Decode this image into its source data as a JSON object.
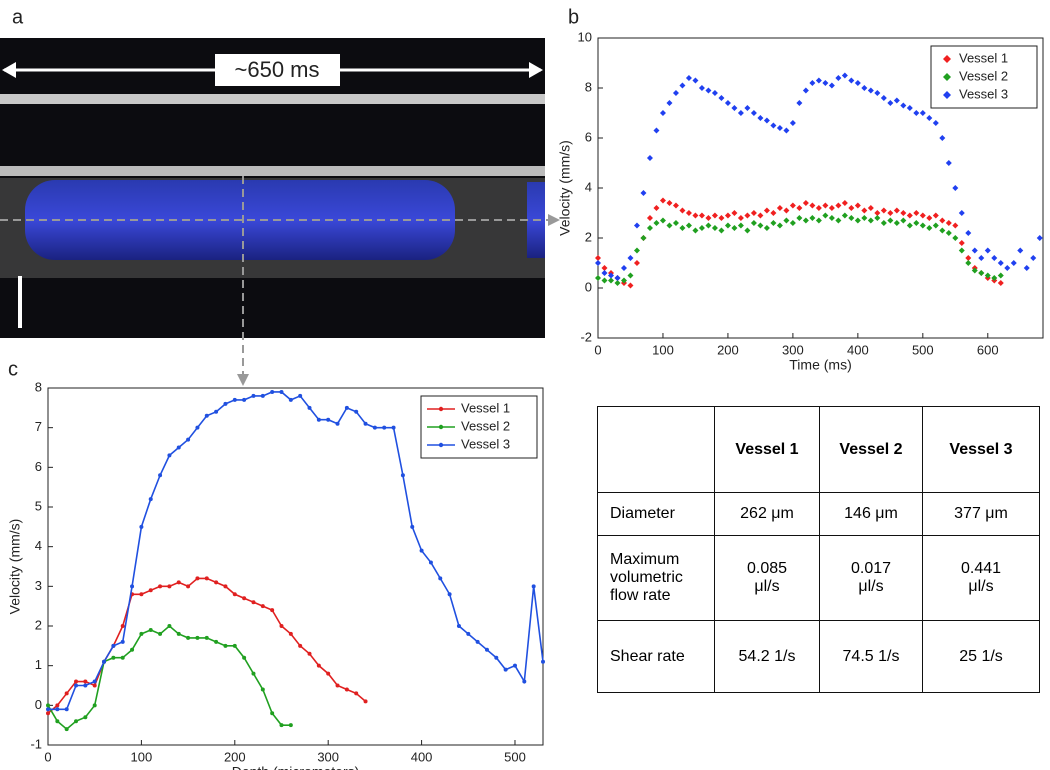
{
  "panel_a": {
    "label": "a",
    "annotation": "~650 ms"
  },
  "chart_data": [
    {
      "type": "scatter",
      "panel": "b",
      "xlabel": "Time (ms)",
      "ylabel": "Velocity  (mm/s)",
      "xlim": [
        0,
        685
      ],
      "ylim": [
        -2,
        10
      ],
      "xticks": [
        0,
        100,
        200,
        300,
        400,
        500,
        600
      ],
      "yticks": [
        -2,
        0,
        2,
        4,
        6,
        8,
        10
      ],
      "legend": "northeast",
      "x": [
        0,
        10,
        20,
        30,
        40,
        50,
        60,
        70,
        80,
        90,
        100,
        110,
        120,
        130,
        140,
        150,
        160,
        170,
        180,
        190,
        200,
        210,
        220,
        230,
        240,
        250,
        260,
        270,
        280,
        290,
        300,
        310,
        320,
        330,
        340,
        350,
        360,
        370,
        380,
        390,
        400,
        410,
        420,
        430,
        440,
        450,
        460,
        470,
        480,
        490,
        500,
        510,
        520,
        530,
        540,
        550,
        560,
        570,
        580,
        590,
        600,
        610,
        620,
        630,
        640,
        650,
        660,
        670,
        680
      ],
      "series": [
        {
          "name": "Vessel 1",
          "color": "#f02020",
          "values": [
            1.2,
            0.8,
            0.6,
            0.4,
            0.2,
            0.1,
            1.0,
            2.0,
            2.8,
            3.2,
            3.5,
            3.4,
            3.3,
            3.1,
            3.0,
            2.9,
            2.9,
            2.8,
            2.9,
            2.8,
            2.9,
            3.0,
            2.8,
            2.9,
            3.0,
            2.9,
            3.1,
            3.0,
            3.2,
            3.1,
            3.3,
            3.2,
            3.4,
            3.3,
            3.2,
            3.3,
            3.2,
            3.3,
            3.4,
            3.2,
            3.3,
            3.1,
            3.2,
            3.0,
            3.1,
            3.0,
            3.1,
            3.0,
            2.9,
            3.0,
            2.9,
            2.8,
            2.9,
            2.7,
            2.6,
            2.5,
            1.8,
            1.2,
            0.8,
            0.6,
            0.4,
            0.3,
            0.2,
            null,
            null,
            null,
            null,
            null,
            null
          ]
        },
        {
          "name": "Vessel 2",
          "color": "#20a020",
          "values": [
            0.4,
            0.3,
            0.3,
            0.2,
            0.3,
            0.5,
            1.5,
            2.0,
            2.4,
            2.6,
            2.7,
            2.5,
            2.6,
            2.4,
            2.5,
            2.3,
            2.4,
            2.5,
            2.4,
            2.3,
            2.5,
            2.4,
            2.5,
            2.3,
            2.6,
            2.5,
            2.4,
            2.6,
            2.5,
            2.7,
            2.6,
            2.8,
            2.7,
            2.8,
            2.7,
            2.9,
            2.8,
            2.7,
            2.9,
            2.8,
            2.7,
            2.8,
            2.7,
            2.8,
            2.6,
            2.7,
            2.6,
            2.7,
            2.5,
            2.6,
            2.5,
            2.4,
            2.5,
            2.3,
            2.2,
            2.0,
            1.5,
            1.0,
            0.7,
            0.6,
            0.5,
            0.4,
            0.5,
            null,
            null,
            null,
            null,
            null,
            null
          ]
        },
        {
          "name": "Vessel 3",
          "color": "#2040f0",
          "values": [
            1.0,
            0.6,
            0.5,
            0.4,
            0.8,
            1.2,
            2.5,
            3.8,
            5.2,
            6.3,
            7.0,
            7.4,
            7.8,
            8.1,
            8.4,
            8.3,
            8.0,
            7.9,
            7.8,
            7.6,
            7.4,
            7.2,
            7.0,
            7.2,
            7.0,
            6.8,
            6.7,
            6.5,
            6.4,
            6.3,
            6.6,
            7.4,
            7.9,
            8.2,
            8.3,
            8.2,
            8.1,
            8.4,
            8.5,
            8.3,
            8.2,
            8.0,
            7.9,
            7.8,
            7.6,
            7.4,
            7.5,
            7.3,
            7.2,
            7.0,
            7.0,
            6.8,
            6.6,
            6.0,
            5.0,
            4.0,
            3.0,
            2.2,
            1.5,
            1.2,
            1.5,
            1.2,
            1.0,
            0.8,
            1.0,
            1.5,
            0.8,
            1.2,
            2.0
          ]
        }
      ]
    },
    {
      "type": "line",
      "panel": "c",
      "xlabel": "Depth (micrometers)",
      "ylabel": "Velocity (mm/s)",
      "xlim": [
        0,
        530
      ],
      "ylim": [
        -1,
        8
      ],
      "xticks": [
        0,
        100,
        200,
        300,
        400,
        500
      ],
      "yticks": [
        -1,
        0,
        1,
        2,
        3,
        4,
        5,
        6,
        7,
        8
      ],
      "legend": "northeast",
      "x": [
        0,
        10,
        20,
        30,
        40,
        50,
        60,
        70,
        80,
        90,
        100,
        110,
        120,
        130,
        140,
        150,
        160,
        170,
        180,
        190,
        200,
        210,
        220,
        230,
        240,
        250,
        260,
        270,
        280,
        290,
        300,
        310,
        320,
        330,
        340,
        350,
        360,
        370,
        380,
        390,
        400,
        410,
        420,
        430,
        440,
        450,
        460,
        470,
        480,
        490,
        500,
        510,
        520,
        530
      ],
      "series": [
        {
          "name": "Vessel 1",
          "color": "#e02020",
          "values": [
            -0.2,
            0.0,
            0.3,
            0.6,
            0.6,
            0.5,
            1.1,
            1.5,
            2.0,
            2.8,
            2.8,
            2.9,
            3.0,
            3.0,
            3.1,
            3.0,
            3.2,
            3.2,
            3.1,
            3.0,
            2.8,
            2.7,
            2.6,
            2.5,
            2.4,
            2.0,
            1.8,
            1.5,
            1.3,
            1.0,
            0.8,
            0.5,
            0.4,
            0.3,
            0.1,
            null,
            null,
            null,
            null,
            null,
            null,
            null,
            null,
            null,
            null,
            null,
            null,
            null,
            null,
            null,
            null,
            null,
            null,
            null
          ]
        },
        {
          "name": "Vessel 2",
          "color": "#20a020",
          "values": [
            0.0,
            -0.4,
            -0.6,
            -0.4,
            -0.3,
            0.0,
            1.1,
            1.2,
            1.2,
            1.4,
            1.8,
            1.9,
            1.8,
            2.0,
            1.8,
            1.7,
            1.7,
            1.7,
            1.6,
            1.5,
            1.5,
            1.2,
            0.8,
            0.4,
            -0.2,
            -0.5,
            -0.5,
            null,
            null,
            null,
            null,
            null,
            null,
            null,
            null,
            null,
            null,
            null,
            null,
            null,
            null,
            null,
            null,
            null,
            null,
            null,
            null,
            null,
            null,
            null,
            null,
            null,
            null,
            null
          ]
        },
        {
          "name": "Vessel 3",
          "color": "#2050e0",
          "values": [
            -0.1,
            -0.1,
            -0.1,
            0.5,
            0.5,
            0.6,
            1.1,
            1.5,
            1.6,
            3.0,
            4.5,
            5.2,
            5.8,
            6.3,
            6.5,
            6.7,
            7.0,
            7.3,
            7.4,
            7.6,
            7.7,
            7.7,
            7.8,
            7.8,
            7.9,
            7.9,
            7.7,
            7.8,
            7.5,
            7.2,
            7.2,
            7.1,
            7.5,
            7.4,
            7.1,
            7.0,
            7.0,
            7.0,
            5.8,
            4.5,
            3.9,
            3.6,
            3.2,
            2.8,
            2.0,
            1.8,
            1.6,
            1.4,
            1.2,
            0.9,
            1.0,
            0.6,
            3.0,
            1.1
          ]
        }
      ]
    }
  ],
  "table": {
    "header": [
      "",
      "Vessel 1",
      "Vessel 2",
      "Vessel 3"
    ],
    "rows": [
      [
        "Diameter",
        "262 μm",
        "146 μm",
        "377 μm"
      ],
      [
        "Maximum volumetric flow rate",
        "0.085 μl/s",
        "0.017 μl/s",
        "0.441 μl/s"
      ],
      [
        "Shear rate",
        "54.2 1/s",
        "74.5 1/s",
        "25 1/s"
      ]
    ]
  }
}
